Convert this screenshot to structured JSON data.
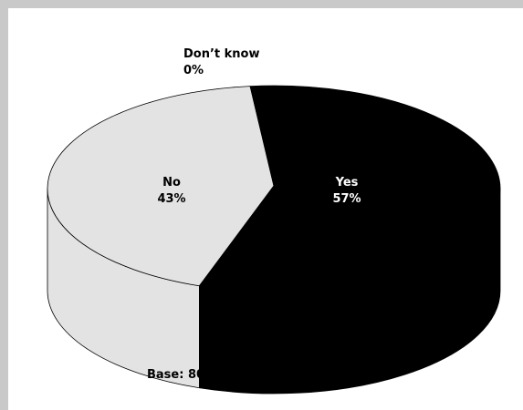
{
  "colors": {
    "frame": "#c9c9c9",
    "yes": "#000000",
    "no": "#e3e3e3",
    "outline": "#000000"
  },
  "chart_data": {
    "type": "pie",
    "style": "3d",
    "title": "",
    "slices": [
      {
        "label": "Yes",
        "value": 57,
        "value_label": "57%",
        "color": "#000000",
        "label_color": "#ffffff"
      },
      {
        "label": "No",
        "value": 43,
        "value_label": "43%",
        "color": "#e3e3e3",
        "label_color": "#000000"
      },
      {
        "label": "Don’t know",
        "value": 0,
        "value_label": "0%",
        "color": "#e3e3e3",
        "label_color": "#000000"
      }
    ],
    "footnote": "Base: 800 respondents",
    "legend": "none"
  }
}
